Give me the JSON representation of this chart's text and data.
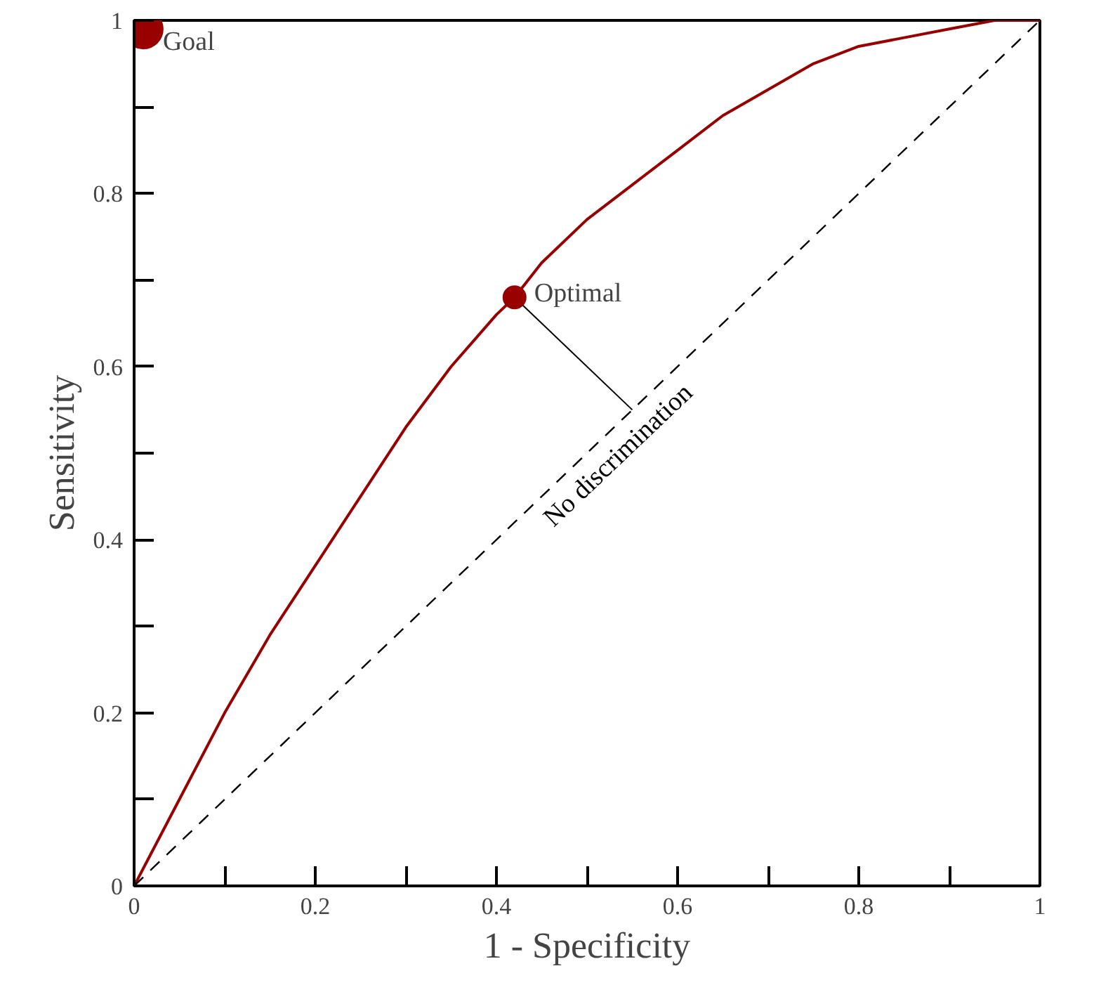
{
  "chart_data": {
    "type": "line",
    "xlabel": "1 - Specificity",
    "ylabel": "Sensitivity",
    "xlim": [
      0,
      1
    ],
    "ylim": [
      0,
      1
    ],
    "xticks": [
      0,
      {
        "value": 0.1,
        "label": null
      },
      0.2,
      {
        "value": 0.3,
        "label": null
      },
      0.4,
      {
        "value": 0.5,
        "label": null
      },
      0.6,
      {
        "value": 0.7,
        "label": null
      },
      0.8,
      {
        "value": 0.9,
        "label": null
      },
      1
    ],
    "yticks": [
      0,
      {
        "value": 0.1,
        "label": null
      },
      0.2,
      {
        "value": 0.3,
        "label": null
      },
      0.4,
      {
        "value": 0.5,
        "label": null
      },
      0.6,
      {
        "value": 0.7,
        "label": null
      },
      0.8,
      {
        "value": 0.9,
        "label": null
      },
      1
    ],
    "grid": false,
    "series": [
      {
        "color": "#990000",
        "line_style": "solid",
        "x": [
          0,
          0.02,
          0.05,
          0.1,
          0.15,
          0.2,
          0.25,
          0.3,
          0.35,
          0.4,
          0.42,
          0.45,
          0.5,
          0.55,
          0.6,
          0.65,
          0.7,
          0.75,
          0.8,
          0.85,
          0.9,
          0.95,
          1
        ],
        "values": [
          0,
          0.04,
          0.1,
          0.2,
          0.29,
          0.37,
          0.45,
          0.53,
          0.6,
          0.66,
          0.68,
          0.72,
          0.77,
          0.81,
          0.85,
          0.89,
          0.92,
          0.95,
          0.97,
          0.98,
          0.99,
          1,
          1
        ]
      },
      {
        "name": "No discrimination",
        "color": "#000000",
        "line_style": "dashed",
        "x": [
          0,
          1
        ],
        "values": [
          0,
          1
        ]
      },
      {
        "color": "#000000",
        "line_style": "solid",
        "x": [
          0.42,
          0.55
        ],
        "values": [
          0.68,
          0.55
        ]
      },
      {
        "type": "scatter",
        "color": "#990000",
        "marker": "circle",
        "x": [
          0.01,
          0.42
        ],
        "values": [
          0.99,
          0.68
        ]
      }
    ],
    "annotations": [
      {
        "text": "Goal",
        "x": 0.01,
        "y": 0.99
      },
      {
        "text": "Optimal",
        "x": 0.42,
        "y": 0.68
      }
    ]
  }
}
